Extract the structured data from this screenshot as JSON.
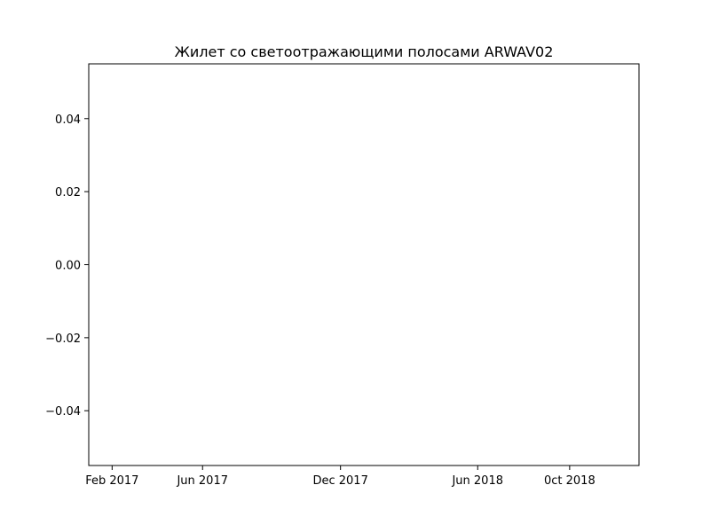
{
  "chart_data": {
    "type": "line",
    "title": "Жилет со светоотражающими полосами ARWAV02",
    "xlabel": "",
    "ylabel": "",
    "series": [],
    "xlim": [
      "2017-01-01",
      "2019-01-01"
    ],
    "ylim": [
      -0.055,
      0.055
    ],
    "xticks": [
      {
        "date": "2017-02-01",
        "label": "Feb 2017"
      },
      {
        "date": "2017-06-01",
        "label": "Jun 2017"
      },
      {
        "date": "2017-12-01",
        "label": "Dec 2017"
      },
      {
        "date": "2018-06-01",
        "label": "Jun 2018"
      },
      {
        "date": "2018-10-01",
        "label": "0ct 2018"
      }
    ],
    "yticks": [
      {
        "value": 0.04,
        "label": "0.04"
      },
      {
        "value": 0.02,
        "label": "0.02"
      },
      {
        "value": 0.0,
        "label": "0.00"
      },
      {
        "value": -0.02,
        "label": "−0.02"
      },
      {
        "value": -0.04,
        "label": "−0.04"
      }
    ],
    "grid": false,
    "legend": "none"
  }
}
